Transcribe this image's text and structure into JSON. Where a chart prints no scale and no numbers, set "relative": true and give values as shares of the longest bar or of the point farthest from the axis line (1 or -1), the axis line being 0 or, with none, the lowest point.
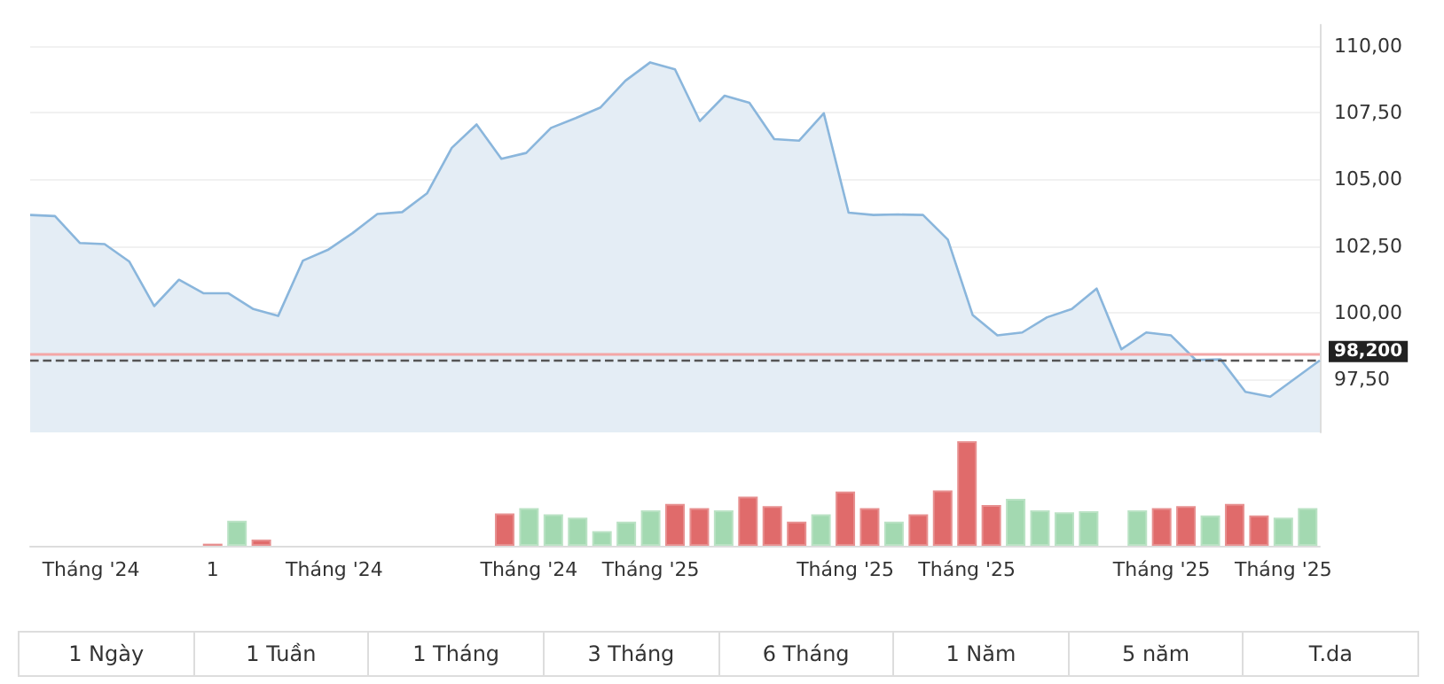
{
  "chart_data": [
    {
      "type": "area",
      "categories": [
        null,
        null,
        null,
        null,
        null,
        null,
        null,
        null,
        null,
        null,
        null,
        null,
        null,
        null,
        null,
        null,
        null,
        null,
        null,
        null,
        null,
        null,
        null,
        null,
        null,
        null,
        null,
        null,
        null,
        null,
        null,
        null,
        null,
        null,
        null,
        null,
        null,
        null,
        null,
        null,
        null,
        null,
        null,
        null,
        null,
        null,
        null,
        null,
        null,
        null,
        null,
        null,
        null
      ],
      "series": [
        {
          "color": "#8ab6dc",
          "values": [
            103.66,
            103.62,
            102.61,
            102.57,
            101.91,
            100.24,
            101.23,
            100.72,
            100.72,
            100.13,
            99.87,
            101.95,
            102.35,
            102.98,
            103.7,
            103.77,
            104.47,
            106.18,
            107.06,
            105.77,
            105.99,
            106.93,
            107.3,
            107.7,
            108.7,
            109.39,
            109.13,
            107.19,
            108.14,
            107.87,
            106.51,
            106.45,
            107.48,
            103.75,
            103.66,
            103.68,
            103.66,
            102.74,
            99.91,
            99.14,
            99.25,
            99.82,
            100.13,
            100.9,
            98.62,
            99.25,
            99.14,
            98.22,
            98.24,
            97.02,
            96.84,
            97.52,
            98.2
          ]
        }
      ],
      "ylim": [
        95.5,
        110.8
      ],
      "yticks": [
        {
          "value": 97.5,
          "label": "97,50"
        },
        {
          "value": 100,
          "label": "100,00"
        },
        {
          "value": 102.5,
          "label": "102,50"
        },
        {
          "value": 105,
          "label": "105,00"
        },
        {
          "value": 107.5,
          "label": "107,50"
        },
        {
          "value": 110,
          "label": "110,00"
        }
      ],
      "grid": "y",
      "tick_labels": "y",
      "marker": "none",
      "ref_lines": [
        {
          "axis": "y",
          "value": 98.44,
          "color": "#f4a6a6",
          "line_style": "solid"
        },
        {
          "axis": "y",
          "value": 98.2,
          "label": "98,200",
          "color": "#555555",
          "line_style": "dashed"
        }
      ]
    },
    {
      "type": "bar",
      "relative": true,
      "tick_labels": "x",
      "categories": [
        null,
        null,
        "Tháng '24",
        null,
        null,
        null,
        null,
        "1",
        null,
        null,
        null,
        null,
        "Tháng '24",
        null,
        null,
        null,
        null,
        null,
        null,
        null,
        "Tháng '24",
        null,
        null,
        null,
        null,
        "Tháng '25",
        null,
        null,
        null,
        null,
        null,
        null,
        null,
        "Tháng '25",
        null,
        null,
        null,
        null,
        "Tháng '25",
        null,
        null,
        null,
        null,
        null,
        null,
        null,
        "Tháng '25",
        null,
        null,
        null,
        null,
        "Tháng '25",
        null
      ],
      "series": [
        {
          "color": "#a3d9b1",
          "values": [
            null,
            null,
            null,
            null,
            null,
            null,
            null,
            null,
            0.24,
            null,
            null,
            null,
            null,
            null,
            null,
            null,
            null,
            null,
            null,
            null,
            0.36,
            0.3,
            0.27,
            0.14,
            0.23,
            0.34,
            null,
            null,
            0.34,
            null,
            null,
            null,
            0.3,
            null,
            null,
            0.23,
            null,
            null,
            null,
            null,
            0.45,
            0.34,
            0.32,
            0.33,
            null,
            0.34,
            null,
            null,
            0.29,
            null,
            null,
            0.27,
            0.36
          ]
        },
        {
          "color": "#e06b6b",
          "values": [
            null,
            null,
            null,
            null,
            null,
            null,
            null,
            0.02,
            null,
            0.06,
            null,
            null,
            null,
            null,
            null,
            null,
            null,
            null,
            null,
            0.31,
            null,
            null,
            null,
            null,
            null,
            null,
            0.4,
            0.36,
            null,
            0.47,
            0.38,
            0.23,
            null,
            0.52,
            0.36,
            null,
            0.3,
            0.53,
            1,
            0.39,
            null,
            null,
            null,
            null,
            null,
            null,
            0.36,
            0.38,
            null,
            0.4,
            0.29,
            null,
            null
          ]
        }
      ]
    },
    {
      "type": "other",
      "annotations": [
        "1 Ngày",
        "1 Tuần",
        "1 Tháng",
        "3 Tháng",
        "6 Tháng",
        "1 Năm",
        "5 năm",
        "T.da"
      ]
    }
  ]
}
